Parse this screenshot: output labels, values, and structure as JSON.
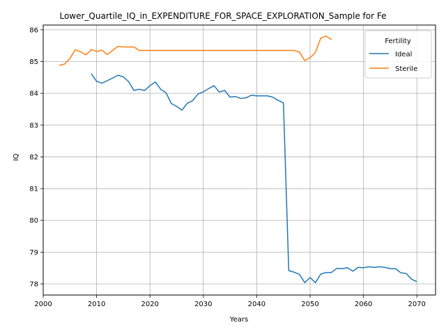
{
  "chart_data": {
    "type": "line",
    "title": "Lower_Quartile_IQ_in_EXPENDITURE_FOR_SPACE_EXPLORATION_Sample for Fe",
    "xlabel": "Years",
    "ylabel": "IQ",
    "xlim": [
      2000,
      2073.5
    ],
    "ylim": [
      77.65,
      86.15
    ],
    "xticks": [
      2000,
      2010,
      2020,
      2030,
      2040,
      2050,
      2060,
      2070
    ],
    "yticks": [
      78,
      79,
      80,
      81,
      82,
      83,
      84,
      85,
      86
    ],
    "grid": true,
    "legend": {
      "title": "Fertility",
      "placement": "top-right"
    },
    "series": [
      {
        "name": "Ideal",
        "color": "#1f77b4",
        "x": [
          2009,
          2010,
          2011,
          2012,
          2013,
          2014,
          2015,
          2016,
          2017,
          2018,
          2019,
          2020,
          2021,
          2022,
          2023,
          2024,
          2025,
          2026,
          2027,
          2028,
          2029,
          2030,
          2031,
          2032,
          2033,
          2034,
          2035,
          2036,
          2037,
          2038,
          2039,
          2040,
          2041,
          2042,
          2043,
          2044,
          2045,
          2046,
          2047,
          2048,
          2049,
          2050,
          2051,
          2052,
          2053,
          2054,
          2055,
          2056,
          2057,
          2058,
          2059,
          2060,
          2061,
          2062,
          2063,
          2064,
          2065,
          2066,
          2067,
          2068,
          2069,
          2070
        ],
        "y": [
          84.62,
          84.38,
          84.32,
          84.4,
          84.48,
          84.57,
          84.52,
          84.37,
          84.09,
          84.13,
          84.09,
          84.24,
          84.36,
          84.13,
          84.02,
          83.68,
          83.59,
          83.47,
          83.69,
          83.77,
          83.98,
          84.05,
          84.15,
          84.24,
          84.04,
          84.09,
          83.88,
          83.9,
          83.84,
          83.86,
          83.94,
          83.92,
          83.92,
          83.92,
          83.88,
          83.78,
          83.7,
          78.42,
          78.37,
          78.3,
          78.04,
          78.2,
          78.04,
          78.31,
          78.36,
          78.36,
          78.49,
          78.48,
          78.51,
          78.4,
          78.52,
          78.51,
          78.54,
          78.52,
          78.54,
          78.52,
          78.48,
          78.48,
          78.35,
          78.33,
          78.15,
          78.07
        ]
      },
      {
        "name": "Sterile",
        "color": "#ff7f0e",
        "x": [
          2003,
          2004,
          2005,
          2006,
          2007,
          2008,
          2009,
          2010,
          2011,
          2012,
          2013,
          2014,
          2015,
          2016,
          2017,
          2018,
          2019,
          2020,
          2021,
          2022,
          2023,
          2024,
          2025,
          2026,
          2027,
          2028,
          2029,
          2030,
          2031,
          2032,
          2033,
          2034,
          2035,
          2036,
          2037,
          2038,
          2039,
          2040,
          2041,
          2042,
          2043,
          2044,
          2045,
          2046,
          2047,
          2048,
          2049,
          2050,
          2051,
          2052,
          2053,
          2054
        ],
        "y": [
          84.88,
          84.92,
          85.1,
          85.37,
          85.31,
          85.21,
          85.38,
          85.32,
          85.36,
          85.22,
          85.35,
          85.48,
          85.46,
          85.46,
          85.46,
          85.35,
          85.35,
          85.35,
          85.35,
          85.35,
          85.35,
          85.35,
          85.35,
          85.35,
          85.35,
          85.35,
          85.35,
          85.35,
          85.35,
          85.35,
          85.35,
          85.35,
          85.35,
          85.35,
          85.35,
          85.35,
          85.35,
          85.35,
          85.35,
          85.35,
          85.35,
          85.35,
          85.35,
          85.35,
          85.35,
          85.3,
          85.03,
          85.12,
          85.29,
          85.74,
          85.8,
          85.69
        ]
      }
    ]
  }
}
